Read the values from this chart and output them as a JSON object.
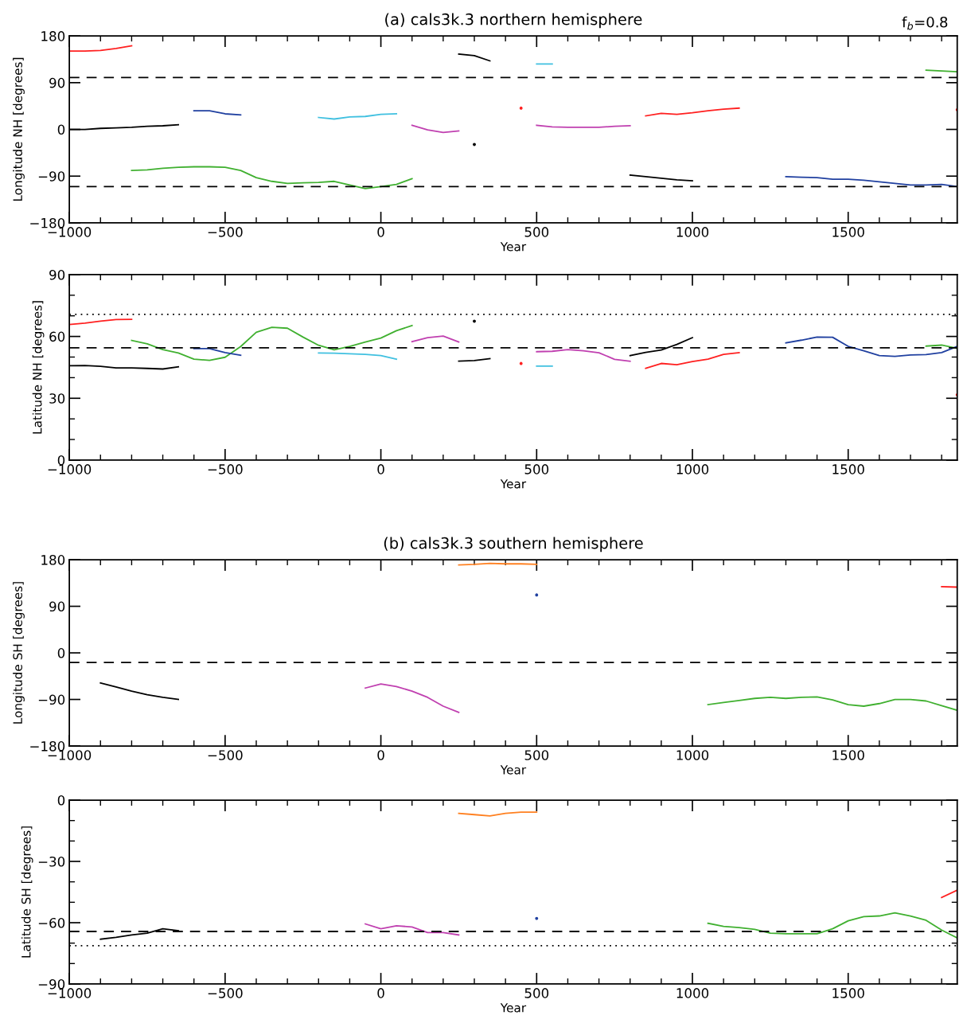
{
  "chart_data": [
    {
      "type": "line",
      "title": "(a) cals3k.3 northern hemisphere",
      "xlabel": "Year",
      "ylabel": "Longitude NH [degrees]",
      "annotations": [
        "f$_{b}$=0.8"
      ],
      "xlim": [
        -1000,
        1850
      ],
      "ylim": [
        -180,
        180
      ],
      "xticks": [
        {
          "value": -1000,
          "label": "−1000"
        },
        {
          "value": -900,
          "label": null
        },
        {
          "value": -800,
          "label": null
        },
        {
          "value": -700,
          "label": null
        },
        {
          "value": -600,
          "label": null
        },
        {
          "value": -500,
          "label": "−500"
        },
        {
          "value": -400,
          "label": null
        },
        {
          "value": -300,
          "label": null
        },
        {
          "value": -200,
          "label": null
        },
        {
          "value": -100,
          "label": null
        },
        0,
        {
          "value": 100,
          "label": null
        },
        {
          "value": 200,
          "label": null
        },
        {
          "value": 300,
          "label": null
        },
        {
          "value": 400,
          "label": null
        },
        500,
        {
          "value": 600,
          "label": null
        },
        {
          "value": 700,
          "label": null
        },
        {
          "value": 800,
          "label": null
        },
        {
          "value": 900,
          "label": null
        },
        1000,
        {
          "value": 1100,
          "label": null
        },
        {
          "value": 1200,
          "label": null
        },
        {
          "value": 1300,
          "label": null
        },
        {
          "value": 1400,
          "label": null
        },
        1500,
        {
          "value": 1600,
          "label": null
        },
        {
          "value": 1700,
          "label": null
        },
        {
          "value": 1800,
          "label": null
        }
      ],
      "yticks": [
        {
          "value": -180,
          "label": "−180"
        },
        {
          "value": -90,
          "label": "−90"
        },
        0,
        90,
        180
      ],
      "ref_lines": [
        {
          "axis": "y",
          "value": 100,
          "line_style": "dashed",
          "color": "#000000"
        },
        {
          "axis": "y",
          "value": -110,
          "line_style": "dashed",
          "color": "#000000"
        }
      ],
      "series": [
        {
          "color": "#ff2020",
          "x": [
            -1000,
            -950,
            -900,
            -850,
            -800
          ],
          "values": [
            151,
            151,
            152,
            156,
            161
          ]
        },
        {
          "color": "#000000",
          "x": [
            -1000,
            -950,
            -900,
            -850,
            -800,
            -750,
            -700,
            -650
          ],
          "values": [
            0,
            0,
            2,
            3,
            4,
            6,
            7,
            9
          ]
        },
        {
          "color": "#2040a0",
          "x": [
            -600,
            -550,
            -500,
            -450
          ],
          "values": [
            36,
            36,
            30,
            28
          ]
        },
        {
          "color": "#40b030",
          "x": [
            -800,
            -750,
            -700,
            -650,
            -600,
            -550,
            -500,
            -450,
            -400,
            -350,
            -300,
            -250,
            -200,
            -150,
            -100,
            -50,
            0,
            50,
            100
          ],
          "values": [
            -79,
            -78,
            -75,
            -73,
            -72,
            -72,
            -73,
            -79,
            -93,
            -100,
            -104,
            -103,
            -102,
            -100,
            -107,
            -114,
            -110,
            -106,
            -95
          ]
        },
        {
          "color": "#40c0e0",
          "x": [
            -200,
            -150,
            -100,
            -50,
            0,
            50
          ],
          "values": [
            23,
            20,
            24,
            25,
            29,
            30
          ]
        },
        {
          "color": "#c040b0",
          "x": [
            100,
            150,
            200,
            250
          ],
          "values": [
            8,
            -1,
            -6,
            -3
          ]
        },
        {
          "color": "#000000",
          "x": [
            300
          ],
          "values": [
            -29
          ],
          "marker": "circle"
        },
        {
          "color": "#000000",
          "x": [
            250,
            300,
            350
          ],
          "values": [
            145,
            142,
            132
          ]
        },
        {
          "color": "#ff2020",
          "x": [
            450
          ],
          "values": [
            41
          ],
          "marker": "circle"
        },
        {
          "color": "#40c0e0",
          "x": [
            500,
            550
          ],
          "values": [
            126,
            126
          ]
        },
        {
          "color": "#c040b0",
          "x": [
            500,
            550,
            600,
            650,
            700,
            750,
            800
          ],
          "values": [
            8,
            5,
            4,
            4,
            4,
            6,
            7
          ]
        },
        {
          "color": "#ff2020",
          "x": [
            850,
            900,
            950,
            1000,
            1050,
            1100,
            1150
          ],
          "values": [
            26,
            31,
            29,
            32,
            36,
            39,
            41
          ]
        },
        {
          "color": "#000000",
          "x": [
            800,
            850,
            900,
            950,
            1000
          ],
          "values": [
            -88,
            -91,
            -94,
            -97,
            -99
          ]
        },
        {
          "color": "#2040a0",
          "x": [
            1300,
            1350,
            1400,
            1450,
            1500,
            1550,
            1600,
            1650,
            1700,
            1750,
            1800,
            1850
          ],
          "values": [
            -91,
            -92,
            -93,
            -96,
            -96,
            -98,
            -101,
            -104,
            -107,
            -107,
            -106,
            -110
          ]
        },
        {
          "color": "#40b030",
          "x": [
            1750,
            1850
          ],
          "values": [
            114,
            111
          ]
        },
        {
          "color": "#ff2020",
          "x": [
            1850
          ],
          "values": [
            38
          ],
          "marker": "circle"
        }
      ]
    },
    {
      "type": "line",
      "xlabel": "Year",
      "ylabel": "Latitude NH [degrees]",
      "xlim": [
        -1000,
        1850
      ],
      "ylim": [
        0,
        90
      ],
      "xticks": [
        {
          "value": -1000,
          "label": "−1000"
        },
        {
          "value": -900,
          "label": null
        },
        {
          "value": -800,
          "label": null
        },
        {
          "value": -700,
          "label": null
        },
        {
          "value": -600,
          "label": null
        },
        {
          "value": -500,
          "label": "−500"
        },
        {
          "value": -400,
          "label": null
        },
        {
          "value": -300,
          "label": null
        },
        {
          "value": -200,
          "label": null
        },
        {
          "value": -100,
          "label": null
        },
        0,
        {
          "value": 100,
          "label": null
        },
        {
          "value": 200,
          "label": null
        },
        {
          "value": 300,
          "label": null
        },
        {
          "value": 400,
          "label": null
        },
        500,
        {
          "value": 600,
          "label": null
        },
        {
          "value": 700,
          "label": null
        },
        {
          "value": 800,
          "label": null
        },
        {
          "value": 900,
          "label": null
        },
        1000,
        {
          "value": 1100,
          "label": null
        },
        {
          "value": 1200,
          "label": null
        },
        {
          "value": 1300,
          "label": null
        },
        {
          "value": 1400,
          "label": null
        },
        1500,
        {
          "value": 1600,
          "label": null
        },
        {
          "value": 1700,
          "label": null
        },
        {
          "value": 1800,
          "label": null
        }
      ],
      "yticks": [
        0,
        {
          "value": 10,
          "label": null
        },
        {
          "value": 20,
          "label": null
        },
        30,
        {
          "value": 40,
          "label": null
        },
        {
          "value": 50,
          "label": null
        },
        60,
        {
          "value": 70,
          "label": null
        },
        {
          "value": 80,
          "label": null
        },
        90
      ],
      "ref_lines": [
        {
          "axis": "y",
          "value": 70.7,
          "line_style": "dotted",
          "color": "#000000"
        },
        {
          "axis": "y",
          "value": 54.5,
          "line_style": "dashed",
          "color": "#000000"
        }
      ],
      "series": [
        {
          "color": "#ff2020",
          "x": [
            -1000,
            -950,
            -900,
            -850,
            -800
          ],
          "values": [
            65.8,
            66.5,
            67.4,
            68.2,
            68.3
          ]
        },
        {
          "color": "#000000",
          "x": [
            -1000,
            -950,
            -900,
            -850,
            -800,
            -750,
            -700,
            -650
          ],
          "values": [
            45.8,
            45.9,
            45.5,
            44.7,
            44.7,
            44.5,
            44.2,
            45.3
          ]
        },
        {
          "color": "#40b030",
          "x": [
            -800,
            -750,
            -700,
            -650,
            -600,
            -550,
            -500,
            -450,
            -400,
            -350,
            -300,
            -250,
            -200,
            -150,
            -100,
            -50,
            0,
            50,
            100
          ],
          "values": [
            58.1,
            56.4,
            53.6,
            52,
            49,
            48.4,
            49.9,
            55.1,
            62,
            64.4,
            64,
            59.7,
            55.7,
            53.5,
            55.2,
            57.3,
            59.2,
            62.8,
            65.3
          ]
        },
        {
          "color": "#2040a0",
          "x": [
            -600,
            -550,
            -500,
            -450
          ],
          "values": [
            54.1,
            54.1,
            52.2,
            50.9
          ]
        },
        {
          "color": "#40c0e0",
          "x": [
            -200,
            -150,
            -100,
            -50,
            0,
            50
          ],
          "values": [
            52,
            51.9,
            51.6,
            51.3,
            50.7,
            49
          ]
        },
        {
          "color": "#c040b0",
          "x": [
            100,
            150,
            200,
            250
          ],
          "values": [
            57.5,
            59.4,
            60.2,
            57.3
          ]
        },
        {
          "color": "#000000",
          "x": [
            250,
            300,
            350
          ],
          "values": [
            48,
            48.3,
            49.2
          ]
        },
        {
          "color": "#000000",
          "x": [
            300
          ],
          "values": [
            67.4
          ],
          "marker": "circle"
        },
        {
          "color": "#ff2020",
          "x": [
            450
          ],
          "values": [
            46.9
          ],
          "marker": "circle"
        },
        {
          "color": "#40c0e0",
          "x": [
            500,
            550
          ],
          "values": [
            45.6,
            45.6
          ]
        },
        {
          "color": "#c040b0",
          "x": [
            500,
            550,
            600,
            650,
            700,
            750,
            800
          ],
          "values": [
            52.6,
            52.8,
            53.6,
            53,
            52.1,
            48.9,
            48
          ]
        },
        {
          "color": "#000000",
          "x": [
            800,
            850,
            900,
            950,
            1000
          ],
          "values": [
            50.7,
            52.3,
            53.4,
            56.1,
            59.4
          ]
        },
        {
          "color": "#ff2020",
          "x": [
            850,
            900,
            950,
            1000,
            1050,
            1100,
            1150
          ],
          "values": [
            44.5,
            46.9,
            46.3,
            47.8,
            49,
            51.3,
            52.1
          ]
        },
        {
          "color": "#2040a0",
          "x": [
            1300,
            1350,
            1400,
            1450,
            1500,
            1550,
            1600,
            1650,
            1700,
            1750,
            1800,
            1850
          ],
          "values": [
            56.9,
            58.2,
            59.7,
            59.6,
            55.2,
            53,
            50.7,
            50.3,
            51,
            51.2,
            52.2,
            55.2
          ]
        },
        {
          "color": "#40b030",
          "x": [
            1750,
            1800,
            1850
          ],
          "values": [
            55.3,
            55.8,
            54.2
          ]
        },
        {
          "color": "#ff2020",
          "x": [
            1850
          ],
          "values": [
            31.7
          ],
          "marker": "circle"
        }
      ]
    },
    {
      "type": "line",
      "title": "(b) cals3k.3 southern hemisphere",
      "xlabel": "Year",
      "ylabel": "Longitude SH [degrees]",
      "xlim": [
        -1000,
        1850
      ],
      "ylim": [
        -180,
        180
      ],
      "xticks": [
        {
          "value": -1000,
          "label": "−1000"
        },
        {
          "value": -900,
          "label": null
        },
        {
          "value": -800,
          "label": null
        },
        {
          "value": -700,
          "label": null
        },
        {
          "value": -600,
          "label": null
        },
        {
          "value": -500,
          "label": "−500"
        },
        {
          "value": -400,
          "label": null
        },
        {
          "value": -300,
          "label": null
        },
        {
          "value": -200,
          "label": null
        },
        {
          "value": -100,
          "label": null
        },
        0,
        {
          "value": 100,
          "label": null
        },
        {
          "value": 200,
          "label": null
        },
        {
          "value": 300,
          "label": null
        },
        {
          "value": 400,
          "label": null
        },
        500,
        {
          "value": 600,
          "label": null
        },
        {
          "value": 700,
          "label": null
        },
        {
          "value": 800,
          "label": null
        },
        {
          "value": 900,
          "label": null
        },
        1000,
        {
          "value": 1100,
          "label": null
        },
        {
          "value": 1200,
          "label": null
        },
        {
          "value": 1300,
          "label": null
        },
        {
          "value": 1400,
          "label": null
        },
        1500,
        {
          "value": 1600,
          "label": null
        },
        {
          "value": 1700,
          "label": null
        },
        {
          "value": 1800,
          "label": null
        }
      ],
      "yticks": [
        {
          "value": -180,
          "label": "−180"
        },
        {
          "value": -90,
          "label": "−90"
        },
        0,
        90,
        180
      ],
      "ref_lines": [
        {
          "axis": "y",
          "value": -18.5,
          "line_style": "dashed",
          "color": "#000000"
        }
      ],
      "series": [
        {
          "color": "#000000",
          "x": [
            -900,
            -850,
            -800,
            -750,
            -700,
            -650
          ],
          "values": [
            -58,
            -66,
            -74,
            -81,
            -86,
            -90
          ]
        },
        {
          "color": "#c040b0",
          "x": [
            -50,
            0,
            50,
            100,
            150,
            200,
            250
          ],
          "values": [
            -68,
            -60,
            -65,
            -74,
            -86,
            -103,
            -115
          ]
        },
        {
          "color": "#ff8020",
          "x": [
            250,
            300,
            350,
            400,
            450,
            500
          ],
          "values": [
            170,
            171,
            173,
            172,
            172,
            171
          ]
        },
        {
          "color": "#2040a0",
          "x": [
            500
          ],
          "values": [
            112
          ],
          "marker": "circle"
        },
        {
          "color": "#ff2020",
          "x": [
            1800,
            1850
          ],
          "values": [
            128,
            127
          ]
        },
        {
          "color": "#40b030",
          "x": [
            1050,
            1100,
            1150,
            1200,
            1250,
            1300,
            1350,
            1400,
            1450,
            1500,
            1550,
            1600,
            1650,
            1700,
            1750,
            1800,
            1850
          ],
          "values": [
            -100,
            -96,
            -92,
            -88,
            -86,
            -88,
            -86,
            -85,
            -91,
            -100,
            -103,
            -98,
            -90,
            -90,
            -93,
            -102,
            -111
          ]
        }
      ]
    },
    {
      "type": "line",
      "xlabel": "Year",
      "ylabel": "Latitude SH [degrees]",
      "xlim": [
        -1000,
        1850
      ],
      "ylim": [
        -90,
        0
      ],
      "xticks": [
        {
          "value": -1000,
          "label": "−1000"
        },
        {
          "value": -900,
          "label": null
        },
        {
          "value": -800,
          "label": null
        },
        {
          "value": -700,
          "label": null
        },
        {
          "value": -600,
          "label": null
        },
        {
          "value": -500,
          "label": "−500"
        },
        {
          "value": -400,
          "label": null
        },
        {
          "value": -300,
          "label": null
        },
        {
          "value": -200,
          "label": null
        },
        {
          "value": -100,
          "label": null
        },
        0,
        {
          "value": 100,
          "label": null
        },
        {
          "value": 200,
          "label": null
        },
        {
          "value": 300,
          "label": null
        },
        {
          "value": 400,
          "label": null
        },
        500,
        {
          "value": 600,
          "label": null
        },
        {
          "value": 700,
          "label": null
        },
        {
          "value": 800,
          "label": null
        },
        {
          "value": 900,
          "label": null
        },
        1000,
        {
          "value": 1100,
          "label": null
        },
        {
          "value": 1200,
          "label": null
        },
        {
          "value": 1300,
          "label": null
        },
        {
          "value": 1400,
          "label": null
        },
        1500,
        {
          "value": 1600,
          "label": null
        },
        {
          "value": 1700,
          "label": null
        },
        {
          "value": 1800,
          "label": null
        }
      ],
      "yticks": [
        {
          "value": -90,
          "label": "−90"
        },
        {
          "value": -80,
          "label": null
        },
        {
          "value": -70,
          "label": null
        },
        {
          "value": -60,
          "label": "−60"
        },
        {
          "value": -50,
          "label": null
        },
        {
          "value": -40,
          "label": null
        },
        {
          "value": -30,
          "label": "−30"
        },
        {
          "value": -20,
          "label": null
        },
        {
          "value": -10,
          "label": null
        },
        0
      ],
      "ref_lines": [
        {
          "axis": "y",
          "value": -64.3,
          "line_style": "dashed",
          "color": "#000000"
        },
        {
          "axis": "y",
          "value": -71.3,
          "line_style": "dotted",
          "color": "#000000"
        }
      ],
      "series": [
        {
          "color": "#000000",
          "x": [
            -900,
            -850,
            -800,
            -750,
            -700,
            -650
          ],
          "values": [
            -68.1,
            -67.2,
            -66,
            -65.1,
            -63,
            -63.9
          ]
        },
        {
          "color": "#c040b0",
          "x": [
            -50,
            0,
            50,
            100,
            150,
            200,
            250
          ],
          "values": [
            -60.6,
            -63,
            -61.5,
            -62.1,
            -64.8,
            -64.8,
            -66
          ]
        },
        {
          "color": "#ff8020",
          "x": [
            250,
            300,
            350,
            400,
            450,
            500
          ],
          "values": [
            -6.5,
            -7.1,
            -7.7,
            -6.5,
            -5.9,
            -5.9
          ]
        },
        {
          "color": "#2040a0",
          "x": [
            500
          ],
          "values": [
            -57.9
          ],
          "marker": "circle"
        },
        {
          "color": "#ff2020",
          "x": [
            1800,
            1850
          ],
          "values": [
            -47.7,
            -44.1
          ]
        },
        {
          "color": "#40b030",
          "x": [
            1050,
            1100,
            1150,
            1200,
            1250,
            1300,
            1350,
            1400,
            1450,
            1500,
            1550,
            1600,
            1650,
            1700,
            1750,
            1800,
            1850
          ],
          "values": [
            -60.3,
            -61.8,
            -62.4,
            -63.3,
            -65.1,
            -65.4,
            -65.4,
            -65.4,
            -63,
            -59.1,
            -57,
            -56.7,
            -55.2,
            -56.7,
            -58.8,
            -63.6,
            -67.5
          ]
        }
      ]
    }
  ]
}
